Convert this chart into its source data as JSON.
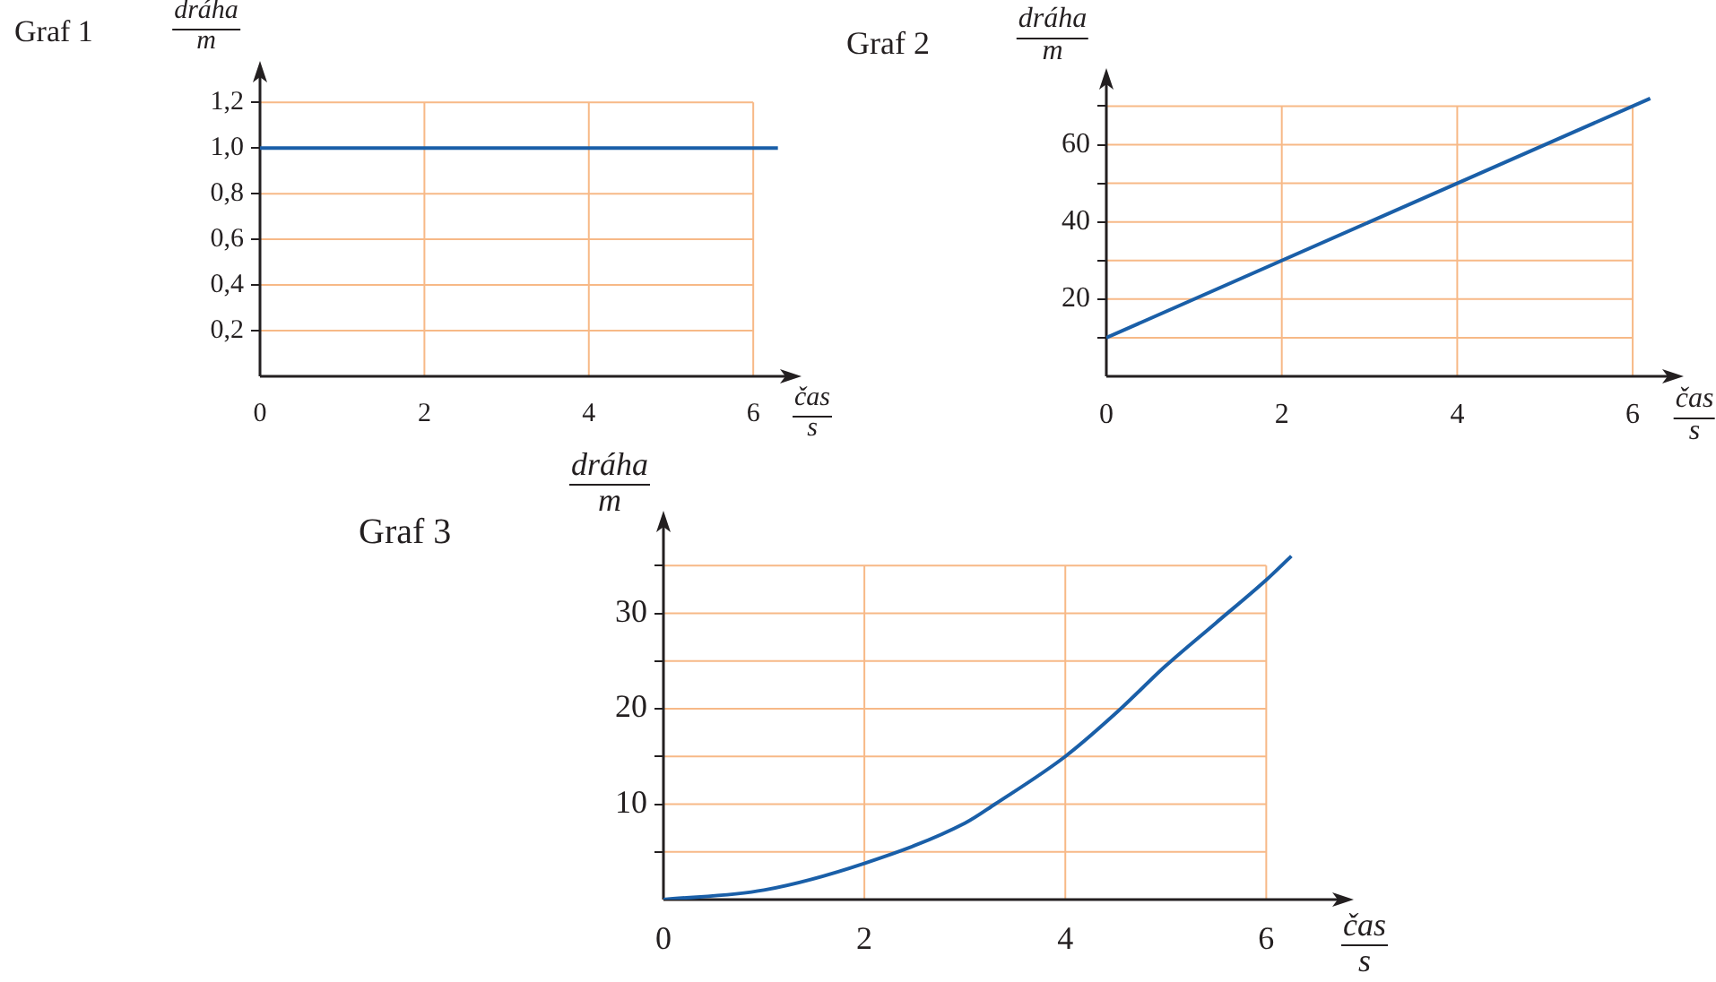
{
  "chart_data": [
    {
      "type": "line",
      "title": "Graf 1",
      "xlabel": "čas\ns",
      "ylabel": "dráha\nm",
      "x": [
        0,
        6.3
      ],
      "values": [
        1.0,
        1.0
      ],
      "color": "#1a5fa8",
      "marker": "none",
      "line_style": "solid",
      "grid": true,
      "xlim": [
        0,
        6.5
      ],
      "ylim": [
        0,
        1.35
      ],
      "xticks": [
        0,
        2,
        4,
        6
      ],
      "yticks": [
        {
          "value": 0.2,
          "label": "0,2"
        },
        {
          "value": 0.4,
          "label": "0,4"
        },
        {
          "value": 0.6,
          "label": "0,6"
        },
        {
          "value": 0.8,
          "label": "0,8"
        },
        {
          "value": 1.0,
          "label": "1,0"
        },
        {
          "value": 1.2,
          "label": "1,2"
        }
      ]
    },
    {
      "type": "line",
      "title": "Graf 2",
      "xlabel": "čas\ns",
      "ylabel": "dráha\nm",
      "x": [
        0,
        6.2
      ],
      "values": [
        10,
        72
      ],
      "color": "#1a5fa8",
      "marker": "none",
      "line_style": "solid",
      "grid": true,
      "xlim": [
        0,
        6.5
      ],
      "ylim": [
        0,
        78
      ],
      "xticks": [
        0,
        2,
        4,
        6
      ],
      "yticks": [
        {
          "value": 10,
          "label": null
        },
        20,
        {
          "value": 30,
          "label": null
        },
        40,
        {
          "value": 50,
          "label": null
        },
        60,
        {
          "value": 70,
          "label": null
        }
      ]
    },
    {
      "type": "line",
      "title": "Graf 3",
      "xlabel": "čas\ns",
      "ylabel": "dráha\nm",
      "x": [
        0,
        1,
        2,
        3,
        3.3,
        4,
        4.5,
        5,
        5.5,
        6,
        6.25
      ],
      "values": [
        0,
        1,
        3.8,
        8,
        10,
        15,
        19.5,
        24.5,
        29,
        33.5,
        36
      ],
      "color": "#1a5fa8",
      "marker": "none",
      "line_style": "solid",
      "grid": true,
      "xlim": [
        0,
        6.8
      ],
      "ylim": [
        0,
        40
      ],
      "xticks": [
        0,
        2,
        4,
        6
      ],
      "yticks": [
        {
          "value": 5,
          "label": null
        },
        10,
        {
          "value": 15,
          "label": null
        },
        20,
        {
          "value": 25,
          "label": null
        },
        30,
        {
          "value": 35,
          "label": null
        }
      ]
    }
  ]
}
